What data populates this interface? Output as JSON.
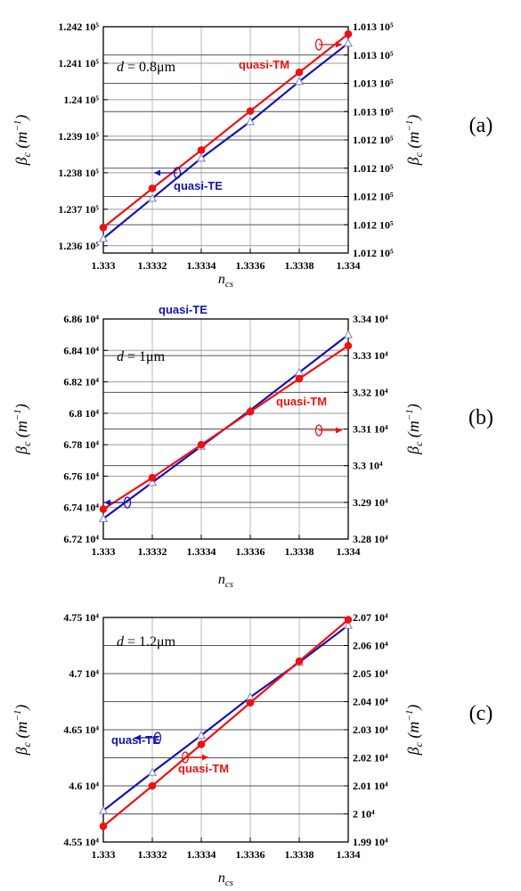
{
  "chart_data": [
    {
      "type": "line",
      "panel": "(a)",
      "annotation": "d = 0.8μm",
      "xlabel": "n_cs",
      "ylabel_left": "βc (m⁻¹)",
      "ylabel_right": "βc (m⁻¹)",
      "xlim": [
        1.333,
        1.334
      ],
      "x_ticks": [
        "1.333",
        "1.3332",
        "1.3334",
        "1.3336",
        "1.3338",
        "1.334"
      ],
      "ylim_left": [
        123580,
        124200
      ],
      "y_ticks_left": [
        {
          "value": 123600,
          "label": "1.236 10⁵"
        },
        {
          "value": 123700,
          "label": "1.237 10⁵"
        },
        {
          "value": 123800,
          "label": "1.238 10⁵"
        },
        {
          "value": 123900,
          "label": "1.239 10⁵"
        },
        {
          "value": 124000,
          "label": "1.24 10⁵"
        },
        {
          "value": 124100,
          "label": "1.241 10⁵"
        },
        {
          "value": 124200,
          "label": "1.242 10⁵"
        }
      ],
      "y_ticks_right_labels": [
        "1.012 10⁵",
        "1.012 10⁵",
        "1.012 10⁵",
        "1.012 10⁵",
        "1.012 10⁵",
        "1.013 10⁵",
        "1.013 10⁵",
        "1.013 10⁵",
        "1.013 10⁵"
      ],
      "series": [
        {
          "name": "quasi-TE",
          "axis": "left",
          "color": "#1414b4",
          "marker": "open-triangle",
          "x": [
            1.333,
            1.3332,
            1.3334,
            1.3336,
            1.3338,
            1.334
          ],
          "values": [
            123620,
            123730,
            123840,
            123940,
            124050,
            124155
          ]
        },
        {
          "name": "quasi-TM",
          "axis": "right",
          "color": "#ee1111",
          "marker": "filled-circle",
          "x": [
            1.333,
            1.3332,
            1.3334,
            1.3336,
            1.3338,
            1.334
          ],
          "values": [
            123650,
            123757,
            123862,
            123969,
            124075,
            124180
          ]
        }
      ]
    },
    {
      "type": "line",
      "panel": "(b)",
      "annotation": "d = 1μm",
      "xlabel": "n_cs",
      "ylabel_left": "βc (m⁻¹)",
      "ylabel_right": "βc (m⁻¹)",
      "xlim": [
        1.333,
        1.334
      ],
      "x_ticks": [
        "1.333",
        "1.3332",
        "1.3334",
        "1.3336",
        "1.3338",
        "1.334"
      ],
      "ylim_left": [
        67200,
        68600
      ],
      "y_ticks_left": [
        {
          "value": 67200,
          "label": "6.72 10⁴"
        },
        {
          "value": 67400,
          "label": "6.74 10⁴"
        },
        {
          "value": 67600,
          "label": "6.76 10⁴"
        },
        {
          "value": 67800,
          "label": "6.78 10⁴"
        },
        {
          "value": 68000,
          "label": "6.8 10⁴"
        },
        {
          "value": 68200,
          "label": "6.82 10⁴"
        },
        {
          "value": 68400,
          "label": "6.84 10⁴"
        },
        {
          "value": 68600,
          "label": "6.86 10⁴"
        }
      ],
      "y_ticks_right_labels": [
        "3.28 10⁴",
        "3.29 10⁴",
        "3.3 10⁴",
        "3.31 10⁴",
        "3.32 10⁴",
        "3.33 10⁴",
        "3.34 10⁴"
      ],
      "series": [
        {
          "name": "quasi-TE",
          "axis": "left",
          "color": "#1414b4",
          "marker": "open-triangle",
          "x": [
            1.333,
            1.3332,
            1.3334,
            1.3336,
            1.3338,
            1.334
          ],
          "values": [
            67330,
            67560,
            67790,
            68020,
            68260,
            68500
          ]
        },
        {
          "name": "quasi-TM",
          "axis": "right",
          "color": "#ee1111",
          "marker": "filled-circle",
          "x": [
            1.333,
            1.3332,
            1.3334,
            1.3336,
            1.3338,
            1.334
          ],
          "values": [
            67390,
            67590,
            67800,
            68010,
            68220,
            68430
          ]
        }
      ]
    },
    {
      "type": "line",
      "panel": "(c)",
      "annotation": "d = 1.2μm",
      "xlabel": "n_cs",
      "ylabel_left": "βc (m⁻¹)",
      "ylabel_right": "βc (m⁻¹)",
      "xlim": [
        1.333,
        1.334
      ],
      "x_ticks": [
        "1.333",
        "1.3332",
        "1.3334",
        "1.3336",
        "1.3338",
        "1.334"
      ],
      "ylim_left": [
        45500,
        47500
      ],
      "y_ticks_left": [
        {
          "value": 45500,
          "label": "4.55 10⁴"
        },
        {
          "value": 46000,
          "label": "4.6 10⁴"
        },
        {
          "value": 46500,
          "label": "4.65 10⁴"
        },
        {
          "value": 47000,
          "label": "4.7 10⁴"
        },
        {
          "value": 47500,
          "label": "4.75 10⁴"
        }
      ],
      "y_ticks_right_labels": [
        "1.99 10⁴",
        "2 10⁴",
        "2.01 10⁴",
        "2.02 10⁴",
        "2.03 10⁴",
        "2.04 10⁴",
        "2.05 10⁴",
        "2.06 10⁴",
        "2.07 10⁴"
      ],
      "series": [
        {
          "name": "quasi-TE",
          "axis": "left",
          "color": "#1414b4",
          "marker": "open-triangle",
          "x": [
            1.333,
            1.3332,
            1.3334,
            1.3336,
            1.3338,
            1.334
          ],
          "values": [
            45780,
            46120,
            46450,
            46790,
            47100,
            47430
          ]
        },
        {
          "name": "quasi-TM",
          "axis": "right",
          "color": "#ee1111",
          "marker": "filled-circle",
          "x": [
            1.333,
            1.3332,
            1.3334,
            1.3336,
            1.3338,
            1.334
          ],
          "values": [
            45640,
            46000,
            46370,
            46740,
            47110,
            47480
          ]
        }
      ]
    }
  ]
}
